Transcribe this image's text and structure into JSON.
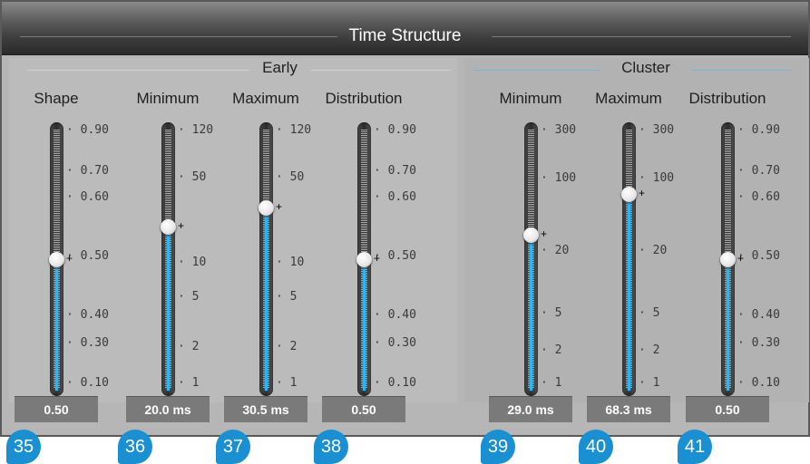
{
  "title": "Time Structure",
  "sections": {
    "early": "Early",
    "cluster": "Cluster"
  },
  "columns": [
    {
      "label": "Shape",
      "value": "0.50",
      "ticks": [
        "0.90",
        "0.70",
        "0.60",
        "0.50",
        "0.40",
        "0.30",
        "0.10"
      ],
      "badge": "35",
      "level": 0.5
    },
    {
      "label": "Minimum",
      "value": "20.0 ms",
      "ticks": [
        "120",
        "50",
        "10",
        "5",
        "2",
        "1"
      ],
      "badge": "36",
      "level": 0.62
    },
    {
      "label": "Maximum",
      "value": "30.5 ms",
      "ticks": [
        "120",
        "50",
        "10",
        "5",
        "2",
        "1"
      ],
      "badge": "37",
      "level": 0.69
    },
    {
      "label": "Distribution",
      "value": "0.50",
      "ticks": [
        "0.90",
        "0.70",
        "0.60",
        "0.50",
        "0.40",
        "0.30",
        "0.10"
      ],
      "badge": "38",
      "level": 0.5
    },
    {
      "label": "Minimum",
      "value": "29.0 ms",
      "ticks": [
        "300",
        "100",
        "20",
        "5",
        "2",
        "1"
      ],
      "badge": "39",
      "level": 0.59
    },
    {
      "label": "Maximum",
      "value": "68.3 ms",
      "ticks": [
        "300",
        "100",
        "20",
        "5",
        "2",
        "1"
      ],
      "badge": "40",
      "level": 0.74
    },
    {
      "label": "Distribution",
      "value": "0.50",
      "ticks": [
        "0.90",
        "0.70",
        "0.60",
        "0.50",
        "0.40",
        "0.30",
        "0.10"
      ],
      "badge": "41",
      "level": 0.5
    }
  ],
  "accent_color": "#29b6f6",
  "badge_color": "#1a8fd1"
}
